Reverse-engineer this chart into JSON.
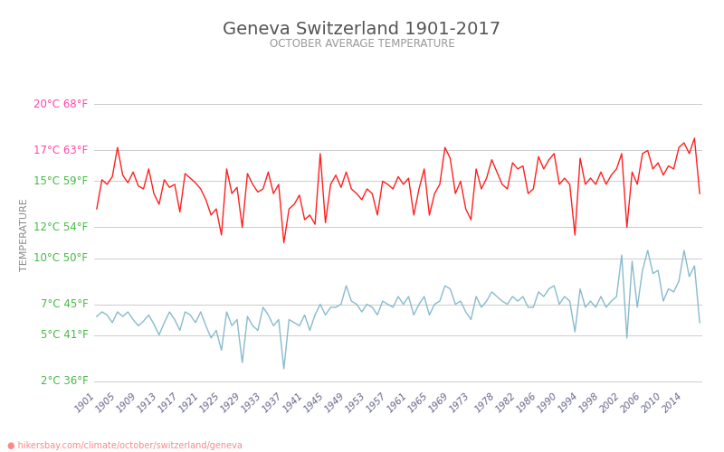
{
  "title": "Geneva Switzerland 1901-2017",
  "subtitle": "OCTOBER AVERAGE TEMPERATURE",
  "ylabel": "TEMPERATURE",
  "watermark": "hikersbay.com/climate/october/switzerland/geneva",
  "years": [
    1901,
    1902,
    1903,
    1904,
    1905,
    1906,
    1907,
    1908,
    1909,
    1910,
    1911,
    1912,
    1913,
    1914,
    1915,
    1916,
    1917,
    1918,
    1919,
    1920,
    1921,
    1922,
    1923,
    1924,
    1925,
    1926,
    1927,
    1928,
    1929,
    1930,
    1931,
    1932,
    1933,
    1934,
    1935,
    1936,
    1937,
    1938,
    1939,
    1940,
    1941,
    1942,
    1943,
    1944,
    1945,
    1946,
    1947,
    1948,
    1949,
    1950,
    1951,
    1952,
    1953,
    1954,
    1955,
    1956,
    1957,
    1958,
    1959,
    1960,
    1961,
    1962,
    1963,
    1964,
    1965,
    1966,
    1967,
    1968,
    1969,
    1970,
    1971,
    1972,
    1973,
    1974,
    1975,
    1976,
    1977,
    1978,
    1979,
    1980,
    1981,
    1982,
    1983,
    1984,
    1985,
    1986,
    1987,
    1988,
    1989,
    1990,
    1991,
    1992,
    1993,
    1994,
    1995,
    1996,
    1997,
    1998,
    1999,
    2000,
    2001,
    2002,
    2003,
    2004,
    2005,
    2006,
    2007,
    2008,
    2009,
    2010,
    2011,
    2012,
    2013,
    2014,
    2015,
    2016,
    2017
  ],
  "day_temps": [
    13.2,
    15.1,
    14.8,
    15.3,
    17.2,
    15.4,
    14.9,
    15.6,
    14.7,
    14.5,
    15.8,
    14.2,
    13.5,
    15.1,
    14.6,
    14.8,
    13.0,
    15.5,
    15.2,
    14.9,
    14.5,
    13.8,
    12.8,
    13.2,
    11.5,
    15.8,
    14.2,
    14.6,
    12.0,
    15.5,
    14.8,
    14.3,
    14.5,
    15.6,
    14.2,
    14.8,
    11.0,
    13.2,
    13.5,
    14.1,
    12.5,
    12.8,
    12.2,
    16.8,
    12.3,
    14.8,
    15.4,
    14.6,
    15.6,
    14.5,
    14.2,
    13.8,
    14.5,
    14.2,
    12.8,
    15.0,
    14.8,
    14.5,
    15.3,
    14.8,
    15.2,
    12.8,
    14.5,
    15.8,
    12.8,
    14.2,
    14.8,
    17.2,
    16.5,
    14.2,
    15.0,
    13.2,
    12.5,
    15.8,
    14.5,
    15.2,
    16.4,
    15.6,
    14.8,
    14.5,
    16.2,
    15.8,
    16.0,
    14.2,
    14.5,
    16.6,
    15.8,
    16.4,
    16.8,
    14.8,
    15.2,
    14.8,
    11.5,
    16.5,
    14.8,
    15.2,
    14.8,
    15.6,
    14.8,
    15.4,
    15.8,
    16.8,
    12.0,
    15.6,
    14.8,
    16.8,
    17.0,
    15.8,
    16.2,
    15.4,
    16.0,
    15.8,
    17.2,
    17.5,
    16.8,
    17.8,
    14.2
  ],
  "night_temps": [
    6.2,
    6.5,
    6.3,
    5.8,
    6.5,
    6.2,
    6.5,
    6.0,
    5.6,
    5.9,
    6.3,
    5.7,
    5.0,
    5.8,
    6.5,
    6.0,
    5.3,
    6.5,
    6.3,
    5.8,
    6.5,
    5.6,
    4.8,
    5.3,
    4.0,
    6.5,
    5.6,
    6.0,
    3.2,
    6.2,
    5.6,
    5.3,
    6.8,
    6.3,
    5.6,
    6.0,
    2.8,
    6.0,
    5.8,
    5.6,
    6.3,
    5.3,
    6.3,
    7.0,
    6.3,
    6.8,
    6.8,
    7.0,
    8.2,
    7.2,
    7.0,
    6.5,
    7.0,
    6.8,
    6.3,
    7.2,
    7.0,
    6.8,
    7.5,
    7.0,
    7.5,
    6.3,
    7.0,
    7.5,
    6.3,
    7.0,
    7.2,
    8.2,
    8.0,
    7.0,
    7.2,
    6.5,
    6.0,
    7.5,
    6.8,
    7.2,
    7.8,
    7.5,
    7.2,
    7.0,
    7.5,
    7.2,
    7.5,
    6.8,
    6.8,
    7.8,
    7.5,
    8.0,
    8.2,
    7.0,
    7.5,
    7.2,
    5.2,
    8.0,
    6.8,
    7.2,
    6.8,
    7.5,
    6.8,
    7.2,
    7.5,
    10.2,
    4.8,
    9.8,
    6.8,
    9.2,
    10.5,
    9.0,
    9.2,
    7.2,
    8.0,
    7.8,
    8.5,
    10.5,
    8.8,
    9.5,
    5.8
  ],
  "yticks_c": [
    2,
    5,
    7,
    10,
    12,
    15,
    17,
    20
  ],
  "yticks_f": [
    36,
    41,
    45,
    50,
    54,
    59,
    63,
    68
  ],
  "xtick_years": [
    1901,
    1905,
    1909,
    1913,
    1917,
    1921,
    1925,
    1929,
    1933,
    1937,
    1941,
    1945,
    1949,
    1953,
    1957,
    1961,
    1965,
    1969,
    1973,
    1978,
    1982,
    1986,
    1990,
    1994,
    1998,
    2002,
    2006,
    2010,
    2014
  ],
  "day_color": "#ff2020",
  "night_color": "#88bbcc",
  "background_color": "#ffffff",
  "grid_color": "#cccccc",
  "title_color": "#555555",
  "subtitle_color": "#999999",
  "ylabel_color": "#888888",
  "ytick_green": "#44bb44",
  "ytick_red": "#ff44aa",
  "ylim": [
    1.5,
    21.5
  ],
  "watermark_color": "#ff8888",
  "fig_width": 8.0,
  "fig_height": 5.0,
  "dpi": 100
}
